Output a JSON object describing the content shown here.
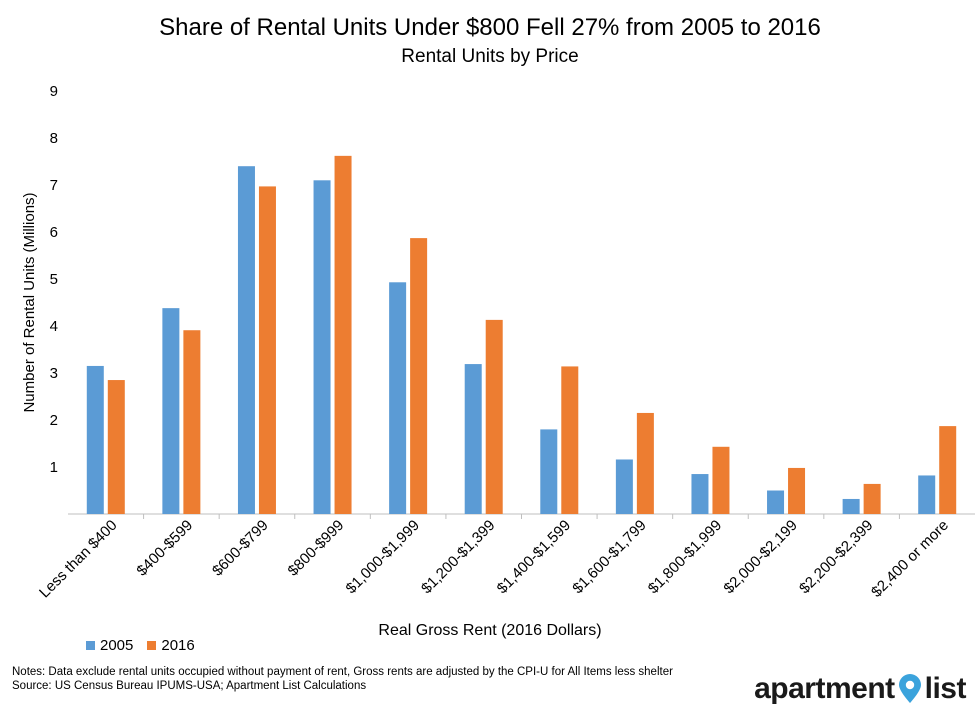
{
  "title": "Share of Rental Units Under $800 Fell 27% from 2005 to 2016",
  "subtitle": "Rental Units by Price",
  "notes": {
    "line1": "Notes: Data exclude rental units occupied without payment of rent, Gross rents are adjusted by the CPI-U for All Items less shelter",
    "line2": "Source: US Census Bureau IPUMS-USA; Apartment List Calculations"
  },
  "logo": {
    "part1": "apartment",
    "part2": "list",
    "icon": "location-pin-icon",
    "pin_color": "#3ba3dc"
  },
  "chart_data": {
    "type": "bar",
    "title": "Share of Rental Units Under $800 Fell 27% from 2005 to 2016",
    "subtitle": "Rental Units by Price",
    "xlabel": "Real Gross Rent (2016 Dollars)",
    "ylabel": "Number of Rental Units (Millions)",
    "ylim": [
      0,
      9
    ],
    "yticks": [
      "1",
      "2",
      "3",
      "4",
      "5",
      "6",
      "7",
      "8",
      "9"
    ],
    "grid": false,
    "legend_position": "bottom-left",
    "categories": [
      "Less than $400",
      "$400-$599",
      "$600-$799",
      "$800-$999",
      "$1,000-$1,999",
      "$1,200-$1,399",
      "$1,400-$1,599",
      "$1,600-$1,799",
      "$1,800-$1,999",
      "$2,000-$2,199",
      "$2,200-$2,399",
      "$2,400 or more"
    ],
    "series": [
      {
        "name": "2005",
        "color": "#5b9bd5",
        "values": [
          3.15,
          4.38,
          7.4,
          7.1,
          4.93,
          3.19,
          1.8,
          1.16,
          0.85,
          0.5,
          0.32,
          0.82
        ]
      },
      {
        "name": "2016",
        "color": "#ed7d31",
        "values": [
          2.85,
          3.91,
          6.97,
          7.62,
          5.87,
          4.13,
          3.14,
          2.15,
          1.43,
          0.98,
          0.64,
          1.87
        ]
      }
    ]
  }
}
